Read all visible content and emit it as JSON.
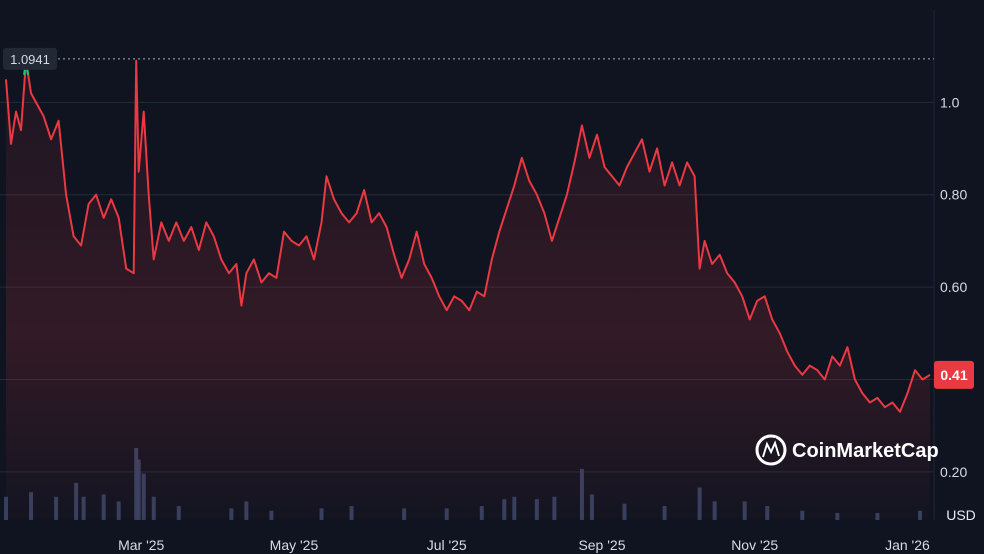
{
  "chart_data": {
    "type": "area",
    "currency_label": "USD",
    "brand": "CoinMarketCap",
    "high_label": "1.0941",
    "last_label": "0.41",
    "ylim": [
      0.1,
      1.2
    ],
    "y_ticks": [
      {
        "value": 0.2,
        "label": "0.20"
      },
      {
        "value": 0.4,
        "label": ""
      },
      {
        "value": 0.6,
        "label": "0.60"
      },
      {
        "value": 0.8,
        "label": "0.80"
      },
      {
        "value": 1.0,
        "label": "1.0"
      }
    ],
    "x_ticks": [
      {
        "date": "2025-03-01",
        "label": "Mar '25"
      },
      {
        "date": "2025-05-01",
        "label": "May '25"
      },
      {
        "date": "2025-07-01",
        "label": "Jul '25"
      },
      {
        "date": "2025-09-01",
        "label": "Sep '25"
      },
      {
        "date": "2025-11-01",
        "label": "Nov '25"
      },
      {
        "date": "2026-01-01",
        "label": "Jan '26"
      }
    ],
    "x_range": [
      "2025-01-06",
      "2026-01-10"
    ],
    "price": [
      [
        "2025-01-06",
        1.05
      ],
      [
        "2025-01-08",
        0.91
      ],
      [
        "2025-01-10",
        0.98
      ],
      [
        "2025-01-12",
        0.94
      ],
      [
        "2025-01-14",
        1.09
      ],
      [
        "2025-01-16",
        1.02
      ],
      [
        "2025-01-18",
        1.0
      ],
      [
        "2025-01-21",
        0.97
      ],
      [
        "2025-01-24",
        0.92
      ],
      [
        "2025-01-27",
        0.96
      ],
      [
        "2025-01-30",
        0.8
      ],
      [
        "2025-02-02",
        0.71
      ],
      [
        "2025-02-05",
        0.69
      ],
      [
        "2025-02-08",
        0.78
      ],
      [
        "2025-02-11",
        0.8
      ],
      [
        "2025-02-14",
        0.75
      ],
      [
        "2025-02-17",
        0.79
      ],
      [
        "2025-02-20",
        0.75
      ],
      [
        "2025-02-23",
        0.64
      ],
      [
        "2025-02-26",
        0.63
      ],
      [
        "2025-02-27",
        1.09
      ],
      [
        "2025-02-28",
        0.85
      ],
      [
        "2025-03-02",
        0.98
      ],
      [
        "2025-03-04",
        0.8
      ],
      [
        "2025-03-06",
        0.66
      ],
      [
        "2025-03-09",
        0.74
      ],
      [
        "2025-03-12",
        0.7
      ],
      [
        "2025-03-15",
        0.74
      ],
      [
        "2025-03-18",
        0.7
      ],
      [
        "2025-03-21",
        0.73
      ],
      [
        "2025-03-24",
        0.68
      ],
      [
        "2025-03-27",
        0.74
      ],
      [
        "2025-03-30",
        0.71
      ],
      [
        "2025-04-02",
        0.66
      ],
      [
        "2025-04-05",
        0.63
      ],
      [
        "2025-04-08",
        0.65
      ],
      [
        "2025-04-10",
        0.56
      ],
      [
        "2025-04-12",
        0.63
      ],
      [
        "2025-04-15",
        0.66
      ],
      [
        "2025-04-18",
        0.61
      ],
      [
        "2025-04-21",
        0.63
      ],
      [
        "2025-04-24",
        0.62
      ],
      [
        "2025-04-27",
        0.72
      ],
      [
        "2025-04-30",
        0.7
      ],
      [
        "2025-05-03",
        0.69
      ],
      [
        "2025-05-06",
        0.71
      ],
      [
        "2025-05-09",
        0.66
      ],
      [
        "2025-05-12",
        0.74
      ],
      [
        "2025-05-14",
        0.84
      ],
      [
        "2025-05-17",
        0.79
      ],
      [
        "2025-05-20",
        0.76
      ],
      [
        "2025-05-23",
        0.74
      ],
      [
        "2025-05-26",
        0.76
      ],
      [
        "2025-05-29",
        0.81
      ],
      [
        "2025-06-01",
        0.74
      ],
      [
        "2025-06-04",
        0.76
      ],
      [
        "2025-06-07",
        0.73
      ],
      [
        "2025-06-10",
        0.67
      ],
      [
        "2025-06-13",
        0.62
      ],
      [
        "2025-06-16",
        0.66
      ],
      [
        "2025-06-19",
        0.72
      ],
      [
        "2025-06-22",
        0.65
      ],
      [
        "2025-06-25",
        0.62
      ],
      [
        "2025-06-28",
        0.58
      ],
      [
        "2025-07-01",
        0.55
      ],
      [
        "2025-07-04",
        0.58
      ],
      [
        "2025-07-07",
        0.57
      ],
      [
        "2025-07-10",
        0.55
      ],
      [
        "2025-07-13",
        0.59
      ],
      [
        "2025-07-16",
        0.58
      ],
      [
        "2025-07-19",
        0.66
      ],
      [
        "2025-07-22",
        0.72
      ],
      [
        "2025-07-25",
        0.77
      ],
      [
        "2025-07-28",
        0.82
      ],
      [
        "2025-07-31",
        0.88
      ],
      [
        "2025-08-03",
        0.83
      ],
      [
        "2025-08-06",
        0.8
      ],
      [
        "2025-08-09",
        0.76
      ],
      [
        "2025-08-12",
        0.7
      ],
      [
        "2025-08-15",
        0.75
      ],
      [
        "2025-08-18",
        0.8
      ],
      [
        "2025-08-21",
        0.87
      ],
      [
        "2025-08-24",
        0.95
      ],
      [
        "2025-08-27",
        0.88
      ],
      [
        "2025-08-30",
        0.93
      ],
      [
        "2025-09-02",
        0.86
      ],
      [
        "2025-09-05",
        0.84
      ],
      [
        "2025-09-08",
        0.82
      ],
      [
        "2025-09-11",
        0.86
      ],
      [
        "2025-09-14",
        0.89
      ],
      [
        "2025-09-17",
        0.92
      ],
      [
        "2025-09-20",
        0.85
      ],
      [
        "2025-09-23",
        0.9
      ],
      [
        "2025-09-26",
        0.82
      ],
      [
        "2025-09-29",
        0.87
      ],
      [
        "2025-10-02",
        0.82
      ],
      [
        "2025-10-05",
        0.87
      ],
      [
        "2025-10-08",
        0.84
      ],
      [
        "2025-10-10",
        0.64
      ],
      [
        "2025-10-12",
        0.7
      ],
      [
        "2025-10-15",
        0.65
      ],
      [
        "2025-10-18",
        0.67
      ],
      [
        "2025-10-21",
        0.63
      ],
      [
        "2025-10-24",
        0.61
      ],
      [
        "2025-10-27",
        0.58
      ],
      [
        "2025-10-30",
        0.53
      ],
      [
        "2025-11-02",
        0.57
      ],
      [
        "2025-11-05",
        0.58
      ],
      [
        "2025-11-08",
        0.53
      ],
      [
        "2025-11-11",
        0.5
      ],
      [
        "2025-11-14",
        0.46
      ],
      [
        "2025-11-17",
        0.43
      ],
      [
        "2025-11-20",
        0.41
      ],
      [
        "2025-11-23",
        0.43
      ],
      [
        "2025-11-26",
        0.42
      ],
      [
        "2025-11-29",
        0.4
      ],
      [
        "2025-12-02",
        0.45
      ],
      [
        "2025-12-05",
        0.43
      ],
      [
        "2025-12-08",
        0.47
      ],
      [
        "2025-12-11",
        0.4
      ],
      [
        "2025-12-14",
        0.37
      ],
      [
        "2025-12-17",
        0.35
      ],
      [
        "2025-12-20",
        0.36
      ],
      [
        "2025-12-23",
        0.34
      ],
      [
        "2025-12-26",
        0.35
      ],
      [
        "2025-12-29",
        0.33
      ],
      [
        "2026-01-01",
        0.37
      ],
      [
        "2026-01-04",
        0.42
      ],
      [
        "2026-01-07",
        0.4
      ],
      [
        "2026-01-10",
        0.41
      ]
    ],
    "volume": [
      [
        "2025-01-06",
        1.0
      ],
      [
        "2025-01-16",
        1.2
      ],
      [
        "2025-01-26",
        1.0
      ],
      [
        "2025-02-03",
        1.6
      ],
      [
        "2025-02-06",
        1.0
      ],
      [
        "2025-02-14",
        1.1
      ],
      [
        "2025-02-20",
        0.8
      ],
      [
        "2025-02-27",
        3.1
      ],
      [
        "2025-02-28",
        2.6
      ],
      [
        "2025-03-02",
        2.0
      ],
      [
        "2025-03-06",
        1.0
      ],
      [
        "2025-03-16",
        0.6
      ],
      [
        "2025-04-06",
        0.5
      ],
      [
        "2025-04-12",
        0.8
      ],
      [
        "2025-04-22",
        0.4
      ],
      [
        "2025-05-12",
        0.5
      ],
      [
        "2025-05-24",
        0.6
      ],
      [
        "2025-06-14",
        0.5
      ],
      [
        "2025-07-01",
        0.5
      ],
      [
        "2025-07-15",
        0.6
      ],
      [
        "2025-07-24",
        0.9
      ],
      [
        "2025-07-28",
        1.0
      ],
      [
        "2025-08-06",
        0.9
      ],
      [
        "2025-08-13",
        1.0
      ],
      [
        "2025-08-24",
        2.2
      ],
      [
        "2025-08-28",
        1.1
      ],
      [
        "2025-09-10",
        0.7
      ],
      [
        "2025-09-26",
        0.6
      ],
      [
        "2025-10-10",
        1.4
      ],
      [
        "2025-10-16",
        0.8
      ],
      [
        "2025-10-28",
        0.8
      ],
      [
        "2025-11-06",
        0.6
      ],
      [
        "2025-11-20",
        0.4
      ],
      [
        "2025-12-04",
        0.3
      ],
      [
        "2025-12-20",
        0.3
      ],
      [
        "2026-01-06",
        0.4
      ]
    ]
  }
}
